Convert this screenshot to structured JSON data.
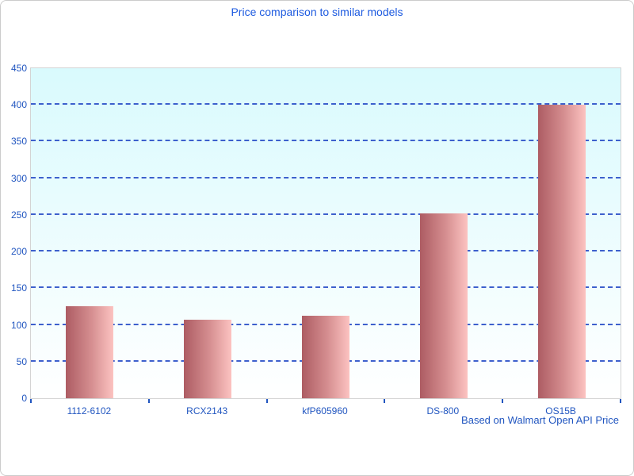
{
  "chart_data": {
    "type": "bar",
    "title": "Price comparison to similar models",
    "categories": [
      "1112-6102",
      "RCX2143",
      "kfP605960",
      "DS-800",
      "OS15B"
    ],
    "values": [
      126,
      107,
      113,
      252,
      400
    ],
    "xlabel": "",
    "ylabel": "",
    "ylim": [
      0,
      450
    ],
    "ytick_step": 50,
    "ytick_labels": [
      "0",
      "50",
      "100",
      "150",
      "200",
      "250",
      "300",
      "350",
      "400",
      "450"
    ],
    "grid": "horizontal-dashed",
    "legend": "none",
    "annotation": "Based on Walmart Open API Price"
  },
  "colors": {
    "title_text": "#1e5be0",
    "axis_text": "#2156c0",
    "gridline": "#3458cb",
    "bar_gradient_left": "#ad5c63",
    "bar_gradient_right": "#fcc3c1",
    "plot_bg_top": "#d9fafd",
    "plot_bg_bottom": "#ffffff",
    "plot_border": "#d4d4d4",
    "frame_border": "#cccccc"
  }
}
